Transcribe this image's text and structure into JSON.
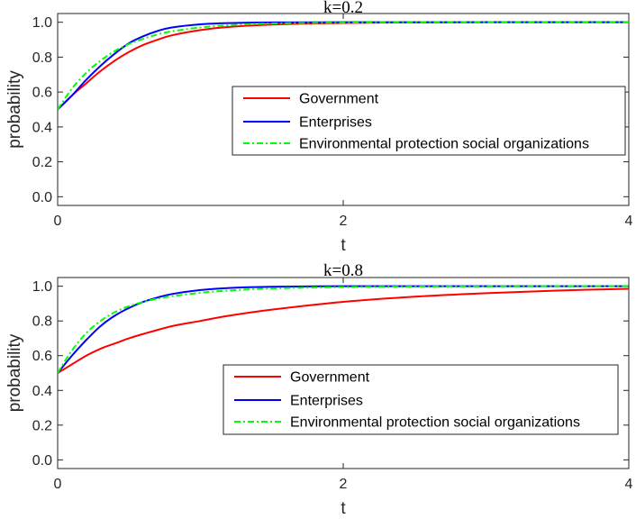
{
  "chart_data": [
    {
      "type": "line",
      "title": "k=0.2",
      "xlabel": "t",
      "ylabel": "probability",
      "xlim": [
        0,
        4
      ],
      "ylim": [
        -0.05,
        1.05
      ],
      "xticks": [
        0,
        2,
        4
      ],
      "xtick_labels": [
        "0",
        "2",
        "4"
      ],
      "yticks": [
        0,
        0.2,
        0.4,
        0.6,
        0.8,
        1
      ],
      "ytick_labels": [
        "0.0",
        "0.2",
        "0.4",
        "0.6",
        "0.8",
        "1.0"
      ],
      "grid": false,
      "legend_position": "center-right",
      "series": [
        {
          "name": "Government",
          "color": "#ff0000",
          "dash": "solid",
          "x": [
            0,
            0.1,
            0.2,
            0.3,
            0.4,
            0.5,
            0.6,
            0.7,
            0.8,
            1.0,
            1.2,
            1.5,
            2.0,
            2.5,
            3.0,
            3.5,
            4.0
          ],
          "y": [
            0.5,
            0.58,
            0.65,
            0.72,
            0.78,
            0.83,
            0.87,
            0.9,
            0.925,
            0.955,
            0.973,
            0.987,
            0.996,
            0.999,
            1.0,
            1.0,
            1.0
          ]
        },
        {
          "name": "Enterprises",
          "color": "#0000ff",
          "dash": "solid",
          "x": [
            0,
            0.1,
            0.2,
            0.3,
            0.4,
            0.5,
            0.6,
            0.7,
            0.8,
            1.0,
            1.2,
            1.5,
            2.0,
            2.5,
            3.0,
            3.5,
            4.0
          ],
          "y": [
            0.5,
            0.58,
            0.67,
            0.75,
            0.82,
            0.88,
            0.92,
            0.95,
            0.97,
            0.988,
            0.995,
            0.999,
            1.0,
            1.0,
            1.0,
            1.0,
            1.0
          ]
        },
        {
          "name": "Environmental protection social organizations",
          "color": "#00ff00",
          "dash": "dashdot",
          "x": [
            0,
            0.1,
            0.2,
            0.3,
            0.4,
            0.5,
            0.6,
            0.7,
            0.8,
            1.0,
            1.2,
            1.5,
            2.0,
            2.5,
            3.0,
            3.5,
            4.0
          ],
          "y": [
            0.5,
            0.62,
            0.71,
            0.78,
            0.835,
            0.875,
            0.905,
            0.93,
            0.948,
            0.97,
            0.983,
            0.993,
            0.998,
            1.0,
            1.0,
            1.0,
            1.0
          ]
        }
      ]
    },
    {
      "type": "line",
      "title": "k=0.8",
      "xlabel": "t",
      "ylabel": "probability",
      "xlim": [
        0,
        4
      ],
      "ylim": [
        -0.05,
        1.05
      ],
      "xticks": [
        0,
        2,
        4
      ],
      "xtick_labels": [
        "0",
        "2",
        "4"
      ],
      "yticks": [
        0,
        0.2,
        0.4,
        0.6,
        0.8,
        1
      ],
      "ytick_labels": [
        "0.0",
        "0.2",
        "0.4",
        "0.6",
        "0.8",
        "1.0"
      ],
      "grid": false,
      "legend_position": "center-right",
      "series": [
        {
          "name": "Government",
          "color": "#ff0000",
          "dash": "solid",
          "x": [
            0,
            0.1,
            0.2,
            0.3,
            0.4,
            0.5,
            0.6,
            0.8,
            1.0,
            1.2,
            1.5,
            2.0,
            2.5,
            3.0,
            3.5,
            4.0
          ],
          "y": [
            0.5,
            0.55,
            0.6,
            0.64,
            0.67,
            0.7,
            0.725,
            0.77,
            0.8,
            0.83,
            0.865,
            0.91,
            0.94,
            0.96,
            0.975,
            0.985
          ]
        },
        {
          "name": "Enterprises",
          "color": "#0000ff",
          "dash": "solid",
          "x": [
            0,
            0.1,
            0.2,
            0.3,
            0.4,
            0.5,
            0.6,
            0.7,
            0.8,
            1.0,
            1.2,
            1.5,
            2.0,
            2.5,
            3.0,
            3.5,
            4.0
          ],
          "y": [
            0.5,
            0.6,
            0.69,
            0.77,
            0.83,
            0.875,
            0.91,
            0.935,
            0.955,
            0.978,
            0.99,
            0.997,
            1.0,
            1.0,
            1.0,
            1.0,
            1.0
          ]
        },
        {
          "name": "Environmental protection social organizations",
          "color": "#00ff00",
          "dash": "dashdot",
          "x": [
            0,
            0.1,
            0.2,
            0.3,
            0.4,
            0.5,
            0.6,
            0.7,
            0.8,
            1.0,
            1.2,
            1.5,
            2.0,
            2.5,
            3.0,
            3.5,
            4.0
          ],
          "y": [
            0.5,
            0.63,
            0.73,
            0.8,
            0.85,
            0.885,
            0.91,
            0.928,
            0.942,
            0.962,
            0.975,
            0.987,
            0.995,
            0.998,
            0.999,
            1.0,
            1.0
          ]
        }
      ]
    }
  ]
}
